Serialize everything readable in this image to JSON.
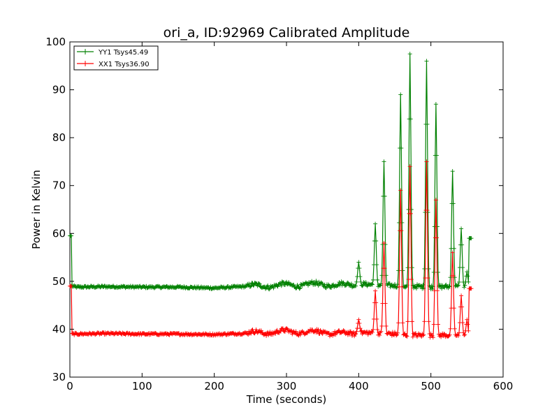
{
  "chart_data": {
    "type": "line",
    "title": "ori_a, ID:92969 Calibrated Amplitude",
    "xlabel": "Time (seconds)",
    "ylabel": "Power in Kelvin",
    "xlim": [
      0,
      600
    ],
    "ylim": [
      30,
      100
    ],
    "xticks": [
      0,
      100,
      200,
      300,
      400,
      500,
      600
    ],
    "yticks": [
      30,
      40,
      50,
      60,
      70,
      80,
      90,
      100
    ],
    "grid": false,
    "legend_position": "top-left",
    "series": [
      {
        "name": "YY1 Tsys45.49",
        "color": "#008000",
        "marker": "+",
        "baseline": [
          [
            0,
            59.5
          ],
          [
            2,
            59.5
          ],
          [
            3,
            49.0
          ],
          [
            10,
            48.8
          ],
          [
            50,
            48.9
          ],
          [
            100,
            48.8
          ],
          [
            150,
            48.8
          ],
          [
            200,
            48.6
          ],
          [
            250,
            49.0
          ],
          [
            300,
            49.2
          ],
          [
            350,
            49.4
          ],
          [
            380,
            49.2
          ],
          [
            400,
            49.5
          ],
          [
            430,
            49.2
          ],
          [
            470,
            49.0
          ],
          [
            500,
            48.8
          ],
          [
            520,
            48.9
          ],
          [
            540,
            48.9
          ],
          [
            550,
            48.8
          ],
          [
            552,
            48.8
          ],
          [
            553,
            59.0
          ],
          [
            556,
            59.0
          ]
        ],
        "peaks": [
          [
            400,
            54
          ],
          [
            423,
            62
          ],
          [
            435,
            75
          ],
          [
            458,
            89
          ],
          [
            471,
            97.5
          ],
          [
            494,
            96
          ],
          [
            507,
            87
          ],
          [
            530,
            73
          ],
          [
            542,
            61
          ],
          [
            550,
            52
          ]
        ]
      },
      {
        "name": "XX1 Tsys36.90",
        "color": "#ff0000",
        "marker": "+",
        "baseline": [
          [
            0,
            49.0
          ],
          [
            2,
            49.0
          ],
          [
            3,
            39.0
          ],
          [
            50,
            39.1
          ],
          [
            100,
            39.0
          ],
          [
            150,
            39.0
          ],
          [
            200,
            38.9
          ],
          [
            250,
            39.2
          ],
          [
            300,
            39.5
          ],
          [
            350,
            39.4
          ],
          [
            380,
            39.0
          ],
          [
            400,
            39.3
          ],
          [
            430,
            39.2
          ],
          [
            470,
            38.8
          ],
          [
            500,
            38.7
          ],
          [
            520,
            38.8
          ],
          [
            540,
            38.6
          ],
          [
            550,
            38.5
          ],
          [
            552,
            38.5
          ],
          [
            553,
            48.5
          ],
          [
            556,
            48.5
          ]
        ],
        "peaks": [
          [
            400,
            42
          ],
          [
            423,
            48
          ],
          [
            435,
            58
          ],
          [
            458,
            69
          ],
          [
            471,
            74
          ],
          [
            494,
            75
          ],
          [
            507,
            67
          ],
          [
            530,
            56
          ],
          [
            542,
            47
          ],
          [
            550,
            42
          ]
        ]
      }
    ]
  }
}
